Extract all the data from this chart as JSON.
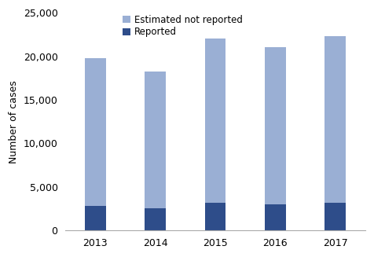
{
  "years": [
    "2013",
    "2014",
    "2015",
    "2016",
    "2017"
  ],
  "reported": [
    2800,
    2500,
    3200,
    2950,
    3200
  ],
  "total": [
    19800,
    18200,
    22000,
    21000,
    22300
  ],
  "color_reported": "#2e4d8a",
  "color_estimated": "#9aafd4",
  "ylabel": "Number of cases",
  "ylim": [
    0,
    25000
  ],
  "yticks": [
    0,
    5000,
    10000,
    15000,
    20000,
    25000
  ],
  "legend_estimated": "Estimated not reported",
  "legend_reported": "Reported",
  "bar_width": 0.35,
  "figsize": [
    4.76,
    3.27
  ],
  "dpi": 100
}
